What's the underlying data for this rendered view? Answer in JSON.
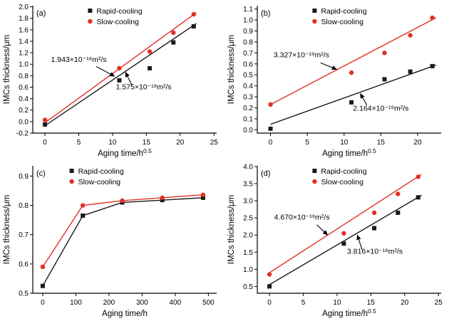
{
  "figure": {
    "background": "#ffffff",
    "rapid_color": "#1a1a1a",
    "slow_color": "#e03026"
  },
  "chart_data": [
    {
      "panel_id": "a",
      "panel_label": "(a)",
      "type": "scatter",
      "xlabel": "Aging time/h",
      "xlabel_sup": "0.5",
      "ylabel": "IMCs thickness/μm",
      "xlim": [
        -1.8,
        25.4
      ],
      "ylim": [
        -0.2,
        2.02
      ],
      "xticks": [
        0,
        5,
        10,
        15,
        20,
        25
      ],
      "yticks": [
        -0.2,
        0,
        0.2,
        0.4,
        0.6,
        0.8,
        1,
        1.2,
        1.4,
        1.6,
        1.8,
        2
      ],
      "legend_pos": [
        0.3,
        0
      ],
      "series": [
        {
          "name": "Rapid-cooling",
          "color": "#1a1a1a",
          "marker": "square",
          "x": [
            0,
            11,
            15.5,
            19,
            22
          ],
          "y": [
            -0.05,
            0.72,
            0.93,
            1.38,
            1.66
          ],
          "fit": [
            0,
            -0.07,
            22.4,
            1.71
          ]
        },
        {
          "name": "Slow-cooling",
          "color": "#e03026",
          "marker": "circle",
          "x": [
            0,
            11,
            15.5,
            19,
            22
          ],
          "y": [
            0.03,
            0.93,
            1.22,
            1.55,
            1.87
          ],
          "fit": [
            0,
            -0.02,
            22.4,
            1.9
          ]
        }
      ],
      "annotations": [
        {
          "text": "1.943×10⁻¹⁸m²/s",
          "x": 5.0,
          "y": 1.04,
          "arrow": [
            7.6,
            0.96,
            10.3,
            0.79
          ]
        },
        {
          "text": "1.575×10⁻¹⁸m²/s",
          "x": 14.6,
          "y": 0.56,
          "arrow": [
            12.9,
            0.63,
            11.9,
            0.86
          ]
        }
      ]
    },
    {
      "panel_id": "b",
      "panel_label": "(b)",
      "type": "scatter",
      "xlabel": "Aging time/h",
      "xlabel_sup": "0.5",
      "ylabel": "IMCs thickness/μm",
      "xlim": [
        -1.8,
        23.2
      ],
      "ylim": [
        -0.03,
        1.13
      ],
      "xticks": [
        0,
        5,
        10,
        15,
        20
      ],
      "yticks": [
        0,
        0.1,
        0.2,
        0.3,
        0.4,
        0.5,
        0.6,
        0.7,
        0.8,
        0.9,
        1,
        1.1
      ],
      "legend_pos": [
        0.3,
        0
      ],
      "series": [
        {
          "name": "Rapid-cooling",
          "color": "#1a1a1a",
          "marker": "square",
          "x": [
            0,
            11,
            15.5,
            19,
            22
          ],
          "y": [
            0.01,
            0.25,
            0.46,
            0.53,
            0.58
          ],
          "fit": [
            0,
            0.05,
            22.5,
            0.59
          ]
        },
        {
          "name": "Slow-cooling",
          "color": "#e03026",
          "marker": "circle",
          "x": [
            0,
            11,
            15.5,
            19,
            22
          ],
          "y": [
            0.23,
            0.52,
            0.7,
            0.86,
            1.02
          ],
          "fit": [
            0,
            0.23,
            22.5,
            1.02
          ]
        }
      ],
      "annotations": [
        {
          "text": "3.327×10⁻¹⁹m²/s",
          "x": 4.2,
          "y": 0.66,
          "arrow": [
            6.8,
            0.61,
            9.0,
            0.55
          ]
        },
        {
          "text": "2.164×10⁻¹⁹m²/s",
          "x": 15.0,
          "y": 0.175,
          "arrow": [
            13.1,
            0.225,
            12.2,
            0.33
          ]
        }
      ]
    },
    {
      "panel_id": "c",
      "panel_label": "(c)",
      "type": "line",
      "xlabel": "Aging time/h",
      "xlabel_sup": "",
      "ylabel": "IMCs thickness/μm",
      "xlim": [
        -30,
        525
      ],
      "ylim": [
        0.5,
        0.935
      ],
      "xticks": [
        0,
        100,
        200,
        300,
        400,
        500
      ],
      "yticks": [
        0.5,
        0.6,
        0.7,
        0.8,
        0.9
      ],
      "legend_pos": [
        0.2,
        0
      ],
      "series": [
        {
          "name": "Rapid-cooling",
          "color": "#1a1a1a",
          "marker": "square",
          "connect": true,
          "x": [
            0,
            121,
            240,
            361,
            484
          ],
          "y": [
            0.525,
            0.765,
            0.81,
            0.818,
            0.826
          ]
        },
        {
          "name": "Slow-cooling",
          "color": "#e03026",
          "marker": "circle",
          "connect": true,
          "x": [
            0,
            121,
            240,
            361,
            484
          ],
          "y": [
            0.59,
            0.8,
            0.816,
            0.826,
            0.836
          ]
        }
      ],
      "annotations": []
    },
    {
      "panel_id": "d",
      "panel_label": "(d)",
      "type": "scatter",
      "xlabel": "Aging time/h",
      "xlabel_sup": "0.5",
      "ylabel": "IMCs thickness/μm",
      "xlim": [
        -1.8,
        25.4
      ],
      "ylim": [
        0.3,
        4.02
      ],
      "xticks": [
        0,
        5,
        10,
        15,
        20,
        25
      ],
      "yticks": [
        0.5,
        1,
        1.5,
        2,
        2.5,
        3,
        3.5,
        4
      ],
      "legend_pos": [
        0.3,
        0
      ],
      "series": [
        {
          "name": "Rapid-cooling",
          "color": "#1a1a1a",
          "marker": "square",
          "x": [
            0,
            11,
            15.5,
            19,
            22
          ],
          "y": [
            0.5,
            1.75,
            2.2,
            2.65,
            3.1
          ],
          "fit": [
            0,
            0.55,
            22.5,
            3.16
          ]
        },
        {
          "name": "Slow-cooling",
          "color": "#e03026",
          "marker": "circle",
          "x": [
            0,
            11,
            15.5,
            19,
            22
          ],
          "y": [
            0.85,
            2.05,
            2.65,
            3.2,
            3.7
          ],
          "fit": [
            0,
            0.9,
            22.5,
            3.77
          ]
        }
      ],
      "annotations": [
        {
          "text": "4.670×10⁻¹⁸m²/s",
          "x": 4.8,
          "y": 2.45,
          "arrow": [
            7.0,
            2.3,
            8.6,
            2.0
          ]
        },
        {
          "text": "3.816×10⁻¹⁸m²/s",
          "x": 15.6,
          "y": 1.45,
          "arrow": [
            13.7,
            1.57,
            13.0,
            2.0
          ]
        }
      ]
    }
  ]
}
